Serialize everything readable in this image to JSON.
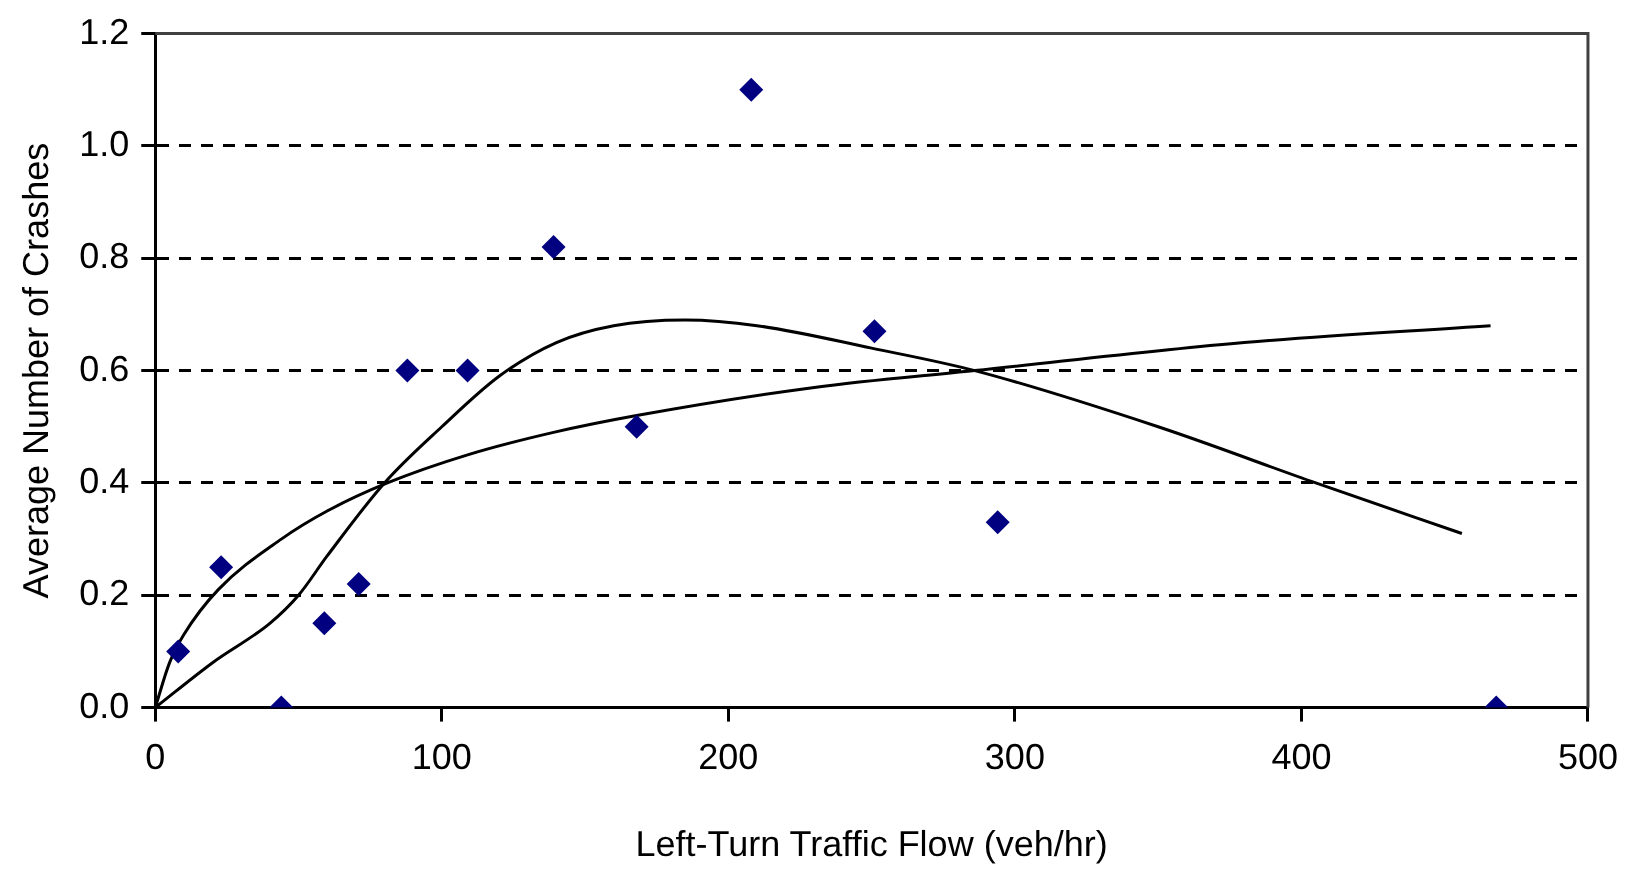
{
  "chart_data": {
    "type": "scatter",
    "xlabel": "Left-Turn Traffic Flow (veh/hr)",
    "ylabel": "Average Number of Crashes",
    "xlim": [
      0,
      500
    ],
    "xticks": [
      0,
      100,
      200,
      300,
      400,
      500
    ],
    "ylim": [
      0,
      1.2
    ],
    "yticks": [
      {
        "value": 0,
        "label": "0.0"
      },
      0.2,
      0.4,
      0.6,
      0.8,
      {
        "value": 1,
        "label": "1.0"
      },
      1.2
    ],
    "grid": "y",
    "legend": false,
    "marker": "diamond",
    "series": [
      {
        "color": "#000080",
        "x": [
          8,
          23,
          44,
          59,
          71,
          88,
          109,
          139,
          168,
          208,
          251,
          294,
          468
        ],
        "values": [
          0.1,
          0.25,
          0,
          0.15,
          0.22,
          0.6,
          0.6,
          0.82,
          0.5,
          1.1,
          0.67,
          0.33,
          0
        ]
      },
      {
        "type": "line",
        "color": "#000000",
        "marker": "none",
        "x": [
          0,
          20,
          40,
          50,
          60,
          80,
          100,
          120,
          140,
          160,
          185,
          210,
          250,
          286,
          350,
          405,
          456
        ],
        "values": [
          0,
          0.08,
          0.15,
          0.2,
          0.27,
          0.4,
          0.5,
          0.59,
          0.65,
          0.68,
          0.69,
          0.68,
          0.64,
          0.6,
          0.5,
          0.4,
          0.31
        ]
      },
      {
        "type": "line",
        "color": "#000000",
        "marker": "none",
        "x": [
          0,
          5,
          10,
          22,
          44,
          60,
          81,
          109,
          139,
          168,
          230,
          286,
          380,
          466
        ],
        "values": [
          0,
          0.08,
          0.13,
          0.21,
          0.3,
          0.35,
          0.4,
          0.45,
          0.49,
          0.52,
          0.57,
          0.6,
          0.65,
          0.68
        ]
      }
    ]
  }
}
